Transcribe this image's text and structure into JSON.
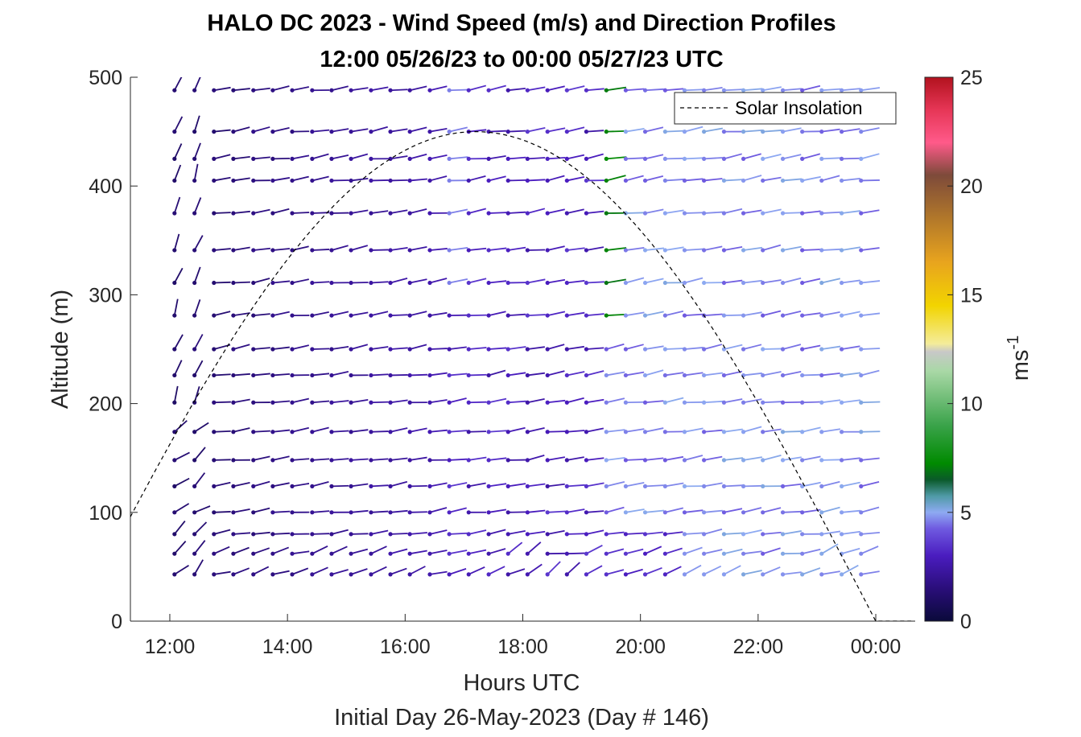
{
  "chart_data": {
    "type": "wind-barb-profile",
    "title": "HALO DC 2023 - Wind Speed (m/s) and Direction Profiles",
    "subtitle": "12:00 05/26/23 to 00:00 05/27/23  UTC",
    "xlabel": "Hours UTC",
    "footer": "Initial Day 26-May-2023 (Day # 146)",
    "ylabel": "Altitude (m)",
    "xlim": [
      11.33,
      24.67
    ],
    "ylim": [
      0,
      500
    ],
    "x_ticks": [
      "12:00",
      "14:00",
      "16:00",
      "18:00",
      "20:00",
      "22:00",
      "00:00"
    ],
    "x_tick_hours": [
      12,
      14,
      16,
      18,
      20,
      22,
      24
    ],
    "y_ticks": [
      0,
      100,
      200,
      300,
      400,
      500
    ],
    "legend": {
      "label": "Solar Insolation",
      "placement": "top-right"
    },
    "colorbar": {
      "label": "ms",
      "label_exponent": "-1",
      "ticks": [
        0,
        5,
        10,
        15,
        20,
        25
      ],
      "range": [
        0,
        25
      ]
    },
    "altitudes_m": [
      43,
      62,
      80,
      100,
      124,
      148,
      174,
      201,
      226,
      250,
      281,
      311,
      341,
      375,
      405,
      425,
      450,
      488
    ],
    "time_hours": [
      12.08,
      12.42,
      12.75,
      13.08,
      13.42,
      13.75,
      14.08,
      14.42,
      14.75,
      15.08,
      15.42,
      15.75,
      16.08,
      16.42,
      16.75,
      17.08,
      17.42,
      17.75,
      18.08,
      18.42,
      18.75,
      19.08,
      19.42,
      19.75,
      20.08,
      20.42,
      20.75,
      21.08,
      21.42,
      21.75,
      22.08,
      22.42,
      22.75,
      23.08,
      23.42,
      23.75
    ],
    "speed_summary": "Winds mostly 1–4 m/s (dark/medium purple) before 19:00, increasing to 4–6 m/s (light blue/teal) afterwards, with a few ~6–7 m/s (green) values near 19:30 at upper levels; directions mostly westerly.",
    "solar_insolation": {
      "sunrise_hour": 10.4,
      "peak_hour": 17.2,
      "sunset_hour": 24.0,
      "peak_altitude_axis_value": 450
    }
  }
}
